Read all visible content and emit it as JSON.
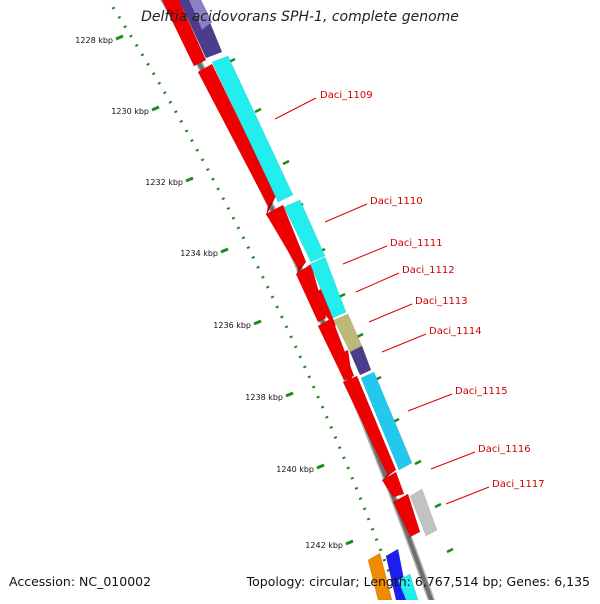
{
  "title": "Delftia acidovorans SPH-1, complete genome",
  "footer": {
    "accession": "Accession: NC_010002",
    "summary": "Topology: circular; Length: 6,767,514 bp; Genes: 6,135"
  },
  "colors": {
    "backbone": "#6e6e6e",
    "tick_dots": "#1a8c1a",
    "label_line": "#e00000",
    "label_text": "#d00000",
    "gene_red": "#ee0000",
    "gene_cyan": "#22eeee",
    "gene_purple": "#4b3c8c",
    "gene_khaki": "#bcb878",
    "gene_grey": "#c2c2c2",
    "gene_blue": "#1e1eee",
    "gene_orange": "#f08a00"
  },
  "scale_ticks": [
    {
      "label": "1228 kbp"
    },
    {
      "label": "1230 kbp"
    },
    {
      "label": "1232 kbp"
    },
    {
      "label": "1234 kbp"
    },
    {
      "label": "1236 kbp"
    },
    {
      "label": "1238 kbp"
    },
    {
      "label": "1240 kbp"
    },
    {
      "label": "1242 kbp"
    }
  ],
  "gene_labels": [
    {
      "name": "Daci_1109"
    },
    {
      "name": "Daci_1110"
    },
    {
      "name": "Daci_1111"
    },
    {
      "name": "Daci_1112"
    },
    {
      "name": "Daci_1113"
    },
    {
      "name": "Daci_1114"
    },
    {
      "name": "Daci_1115"
    },
    {
      "name": "Daci_1116"
    },
    {
      "name": "Daci_1117"
    }
  ]
}
